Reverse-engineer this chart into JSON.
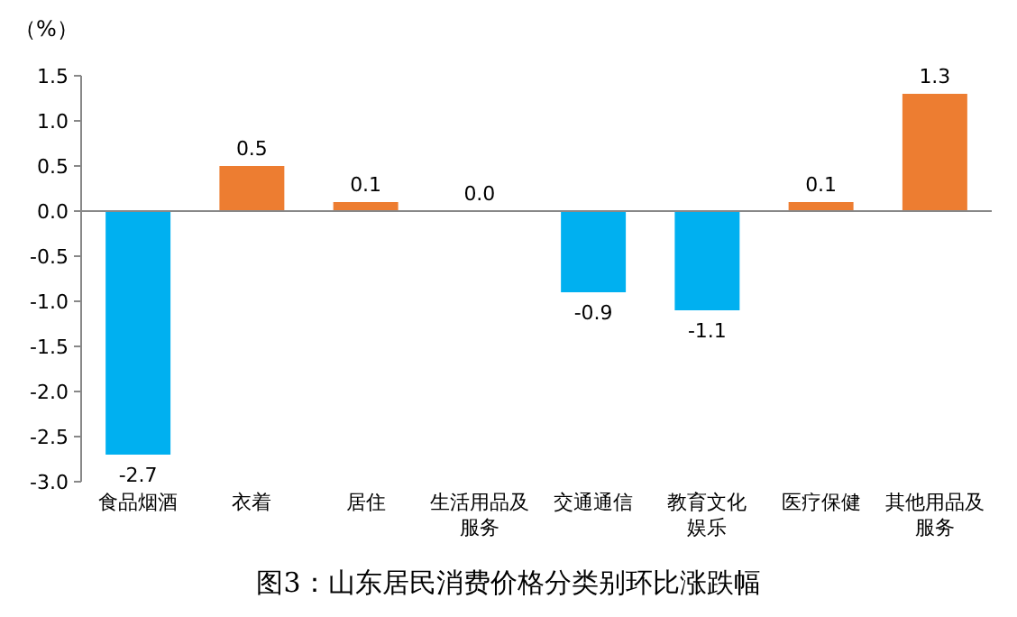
{
  "chart_data": {
    "type": "bar",
    "title": "图3：山东居民消费价格分类别环比涨跌幅",
    "ylabel": "（%）",
    "categories": [
      "食品烟酒",
      "衣着",
      "居住",
      "生活用品及服务",
      "交通通信",
      "教育文化娱乐",
      "医疗保健",
      "其他用品及服务"
    ],
    "values": [
      -2.7,
      0.5,
      0.1,
      0.0,
      -0.9,
      -1.1,
      0.1,
      1.3
    ],
    "colors": [
      "#00b0f0",
      "#ed7d31",
      "#ed7d31",
      "#ed7d31",
      "#00b0f0",
      "#00b0f0",
      "#ed7d31",
      "#ed7d31"
    ],
    "ylim": [
      -3,
      1.5
    ],
    "yticks": [
      {
        "value": -3,
        "label": "-3.0"
      },
      {
        "value": -2.5,
        "label": "-2.5"
      },
      {
        "value": -2,
        "label": "-2.0"
      },
      {
        "value": -1.5,
        "label": "-1.5"
      },
      {
        "value": -1,
        "label": "-1.0"
      },
      {
        "value": -0.5,
        "label": "-0.5"
      },
      {
        "value": 0,
        "label": "0.0"
      },
      {
        "value": 0.5,
        "label": "0.5"
      },
      {
        "value": 1,
        "label": "1.0"
      },
      {
        "value": 1.5,
        "label": "1.5"
      }
    ],
    "value_labels": [
      "-2.7",
      "0.5",
      "0.1",
      "0.0",
      "-0.9",
      "-1.1",
      "0.1",
      "1.3"
    ]
  }
}
